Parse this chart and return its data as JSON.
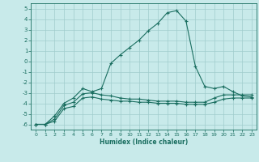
{
  "xlabel": "Humidex (Indice chaleur)",
  "bg_color": "#c8eaea",
  "grid_color": "#a0cccc",
  "line_color": "#1a6e60",
  "xlim": [
    -0.5,
    23.5
  ],
  "ylim": [
    -6.5,
    5.5
  ],
  "x_ticks": [
    0,
    1,
    2,
    3,
    4,
    5,
    6,
    7,
    8,
    9,
    10,
    11,
    12,
    13,
    14,
    15,
    16,
    17,
    18,
    19,
    20,
    21,
    22,
    23
  ],
  "y_ticks": [
    -6,
    -5,
    -4,
    -3,
    -2,
    -1,
    0,
    1,
    2,
    3,
    4,
    5
  ],
  "line1": {
    "x": [
      0,
      1,
      2,
      3,
      4,
      5,
      6,
      7,
      8,
      9,
      10,
      11,
      12,
      13,
      14,
      15,
      16,
      17,
      18,
      19,
      20,
      21,
      22,
      23
    ],
    "y": [
      -6.0,
      -6.0,
      -5.7,
      -4.5,
      -4.3,
      -3.5,
      -3.4,
      -3.6,
      -3.7,
      -3.8,
      -3.8,
      -3.9,
      -3.9,
      -4.0,
      -4.0,
      -4.0,
      -4.1,
      -4.1,
      -4.1,
      -3.9,
      -3.6,
      -3.5,
      -3.5,
      -3.5
    ]
  },
  "line2": {
    "x": [
      0,
      1,
      2,
      3,
      4,
      5,
      6,
      7,
      8,
      9,
      10,
      11,
      12,
      13,
      14,
      15,
      16,
      17,
      18,
      19,
      20,
      21,
      22,
      23
    ],
    "y": [
      -6.0,
      -6.0,
      -5.5,
      -4.2,
      -3.9,
      -3.1,
      -3.0,
      -3.2,
      -3.3,
      -3.5,
      -3.6,
      -3.6,
      -3.7,
      -3.8,
      -3.8,
      -3.8,
      -3.9,
      -3.9,
      -3.9,
      -3.5,
      -3.2,
      -3.2,
      -3.2,
      -3.2
    ]
  },
  "line3": {
    "x": [
      0,
      1,
      2,
      3,
      4,
      5,
      6,
      7,
      8,
      9,
      10,
      11,
      12,
      13,
      14,
      15,
      16,
      17,
      18,
      19,
      20,
      21,
      22,
      23
    ],
    "y": [
      -6.0,
      -6.0,
      -5.2,
      -4.0,
      -3.5,
      -2.6,
      -2.9,
      -2.6,
      -0.2,
      0.6,
      1.3,
      2.0,
      2.9,
      3.6,
      4.6,
      4.8,
      3.8,
      -0.5,
      -2.4,
      -2.6,
      -2.4,
      -2.9,
      -3.3,
      -3.4
    ]
  }
}
